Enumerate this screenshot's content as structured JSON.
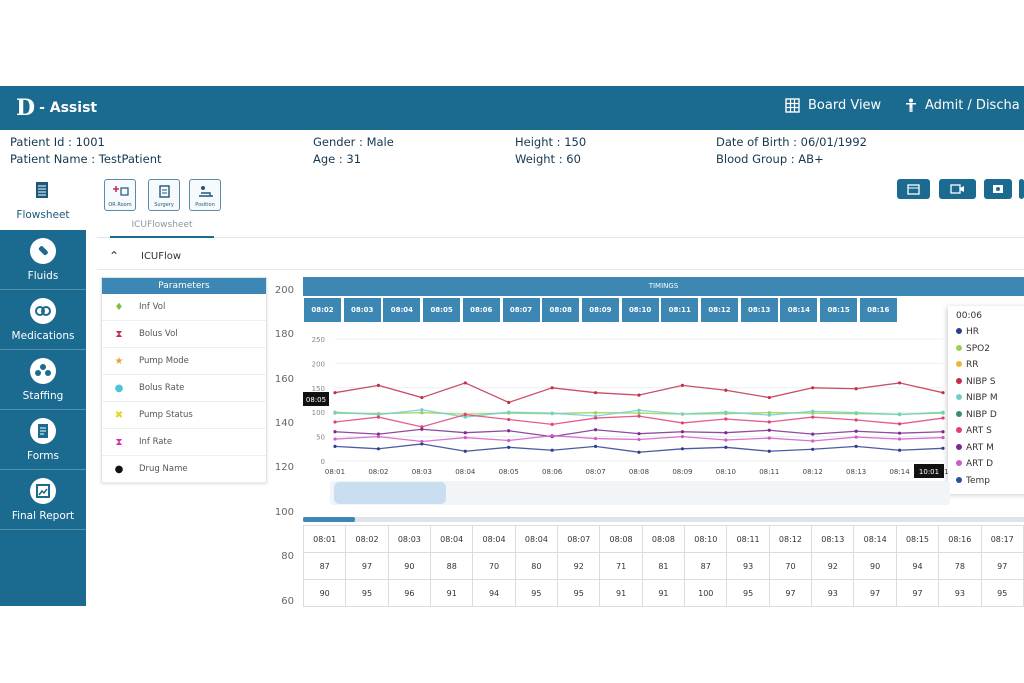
{
  "app": {
    "brand_mark": "D",
    "brand_name": "- Assist",
    "board_view_label": "Board View",
    "admit_label": "Admit / Discha"
  },
  "patient": {
    "id": "Patient Id : 1001",
    "name": "Patient Name : TestPatient",
    "gender": "Gender : Male",
    "age": "Age : 31",
    "height": "Height : 150",
    "weight": "Weight : 60",
    "dob": "Date of Birth : 06/01/1992",
    "blood_group": "Blood Group : AB+"
  },
  "sidebar": {
    "active": {
      "label": "Flowsheet",
      "icon": "flowsheet-icon"
    },
    "items": [
      {
        "label": "Fluids",
        "icon": "fluids-icon"
      },
      {
        "label": "Medications",
        "icon": "medications-icon"
      },
      {
        "label": "Staffing",
        "icon": "staffing-icon"
      },
      {
        "label": "Forms",
        "icon": "forms-icon"
      },
      {
        "label": "Final Report",
        "icon": "final-report-icon"
      }
    ]
  },
  "toolbar": {
    "buttons": [
      {
        "label": "OR Room",
        "icon": "or-room-icon"
      },
      {
        "label": "Surgery",
        "icon": "surgery-icon"
      },
      {
        "label": "Position",
        "icon": "position-icon"
      }
    ],
    "action_icons": [
      "calendar-icon",
      "video-icon",
      "media-icon",
      "more-icon"
    ]
  },
  "tab": {
    "label": "ICUFlowsheet"
  },
  "section": {
    "title": "ICUFlow"
  },
  "parameters": {
    "header": "Parameters",
    "rows": [
      {
        "label": "Inf Vol",
        "symbol": "♦",
        "color": "#7cc142"
      },
      {
        "label": "Bolus Vol",
        "symbol": "⧗",
        "color": "#c0304a"
      },
      {
        "label": "Pump Mode",
        "symbol": "★",
        "color": "#e6a23c"
      },
      {
        "label": "Bolus Rate",
        "symbol": "●",
        "color": "#4fc3d9"
      },
      {
        "label": "Pump Status",
        "symbol": "✖",
        "color": "#e6d61f"
      },
      {
        "label": "Inf Rate",
        "symbol": "⧗",
        "color": "#d62fa4"
      },
      {
        "label": "Drug Name",
        "symbol": "●",
        "color": "#111111"
      }
    ]
  },
  "y_axis": [
    "200",
    "180",
    "160",
    "140",
    "120",
    "100",
    "80",
    "60"
  ],
  "chart": {
    "header": "TIMINGS",
    "time_labels": [
      "08:02",
      "08:03",
      "08:04",
      "08:05",
      "08:06",
      "08:07",
      "08:08",
      "08:09",
      "08:10",
      "08:11",
      "08:12",
      "08:13",
      "08:14",
      "08:15",
      "08:16"
    ],
    "inner_y_ticks": [
      "250",
      "200",
      "150",
      "100",
      "50",
      "0"
    ],
    "x_ticks": [
      "08:01",
      "08:02",
      "08:03",
      "08:04",
      "08:05",
      "08:06",
      "08:07",
      "08:08",
      "08:09",
      "08:10",
      "08:11",
      "08:12",
      "08:13",
      "08:14",
      "08:15"
    ],
    "left_marker": "08:05",
    "right_marker": "10:01"
  },
  "legend": {
    "title": "00:06",
    "items": [
      {
        "label": "HR",
        "color": "#2b3f8f"
      },
      {
        "label": "SPO2",
        "color": "#9bcf5a"
      },
      {
        "label": "RR",
        "color": "#f0b23a"
      },
      {
        "label": "NIBP S",
        "color": "#c0304a"
      },
      {
        "label": "NIBP M",
        "color": "#6fd0c9"
      },
      {
        "label": "NIBP D",
        "color": "#3a8f6a"
      },
      {
        "label": "ART S",
        "color": "#e0407a"
      },
      {
        "label": "ART M",
        "color": "#7a2b8f"
      },
      {
        "label": "ART D",
        "color": "#d05ac8"
      },
      {
        "label": "Temp",
        "color": "#2b4f9f"
      }
    ]
  },
  "chart_data": {
    "type": "line",
    "x": [
      "08:01",
      "08:02",
      "08:03",
      "08:04",
      "08:05",
      "08:06",
      "08:07",
      "08:08",
      "08:09",
      "08:10",
      "08:11",
      "08:12",
      "08:13",
      "08:14",
      "08:15"
    ],
    "ylim": [
      0,
      250
    ],
    "series": [
      {
        "name": "HR",
        "values": [
          30,
          25,
          35,
          20,
          28,
          22,
          30,
          18,
          25,
          28,
          20,
          24,
          30,
          22,
          26
        ]
      },
      {
        "name": "SPO2",
        "values": [
          98,
          97,
          99,
          96,
          98,
          97,
          99,
          98,
          96,
          97,
          99,
          98,
          97,
          96,
          98
        ]
      },
      {
        "name": "NIBP S",
        "values": [
          140,
          155,
          130,
          160,
          120,
          150,
          140,
          135,
          155,
          145,
          130,
          150,
          148,
          160,
          140
        ]
      },
      {
        "name": "NIBP M",
        "values": [
          100,
          95,
          105,
          90,
          100,
          98,
          92,
          104,
          96,
          100,
          94,
          102,
          99,
          95,
          100
        ]
      },
      {
        "name": "ART S",
        "values": [
          80,
          90,
          70,
          95,
          85,
          75,
          88,
          92,
          78,
          86,
          80,
          90,
          84,
          76,
          88
        ]
      },
      {
        "name": "ART M",
        "values": [
          60,
          55,
          65,
          58,
          62,
          50,
          64,
          56,
          60,
          58,
          63,
          55,
          61,
          57,
          60
        ]
      },
      {
        "name": "ART D",
        "values": [
          45,
          50,
          40,
          48,
          42,
          52,
          46,
          44,
          50,
          43,
          47,
          41,
          49,
          45,
          48
        ]
      }
    ]
  },
  "grid": {
    "header": [
      "08:01",
      "08:02",
      "08:03",
      "08:04",
      "08:04",
      "08:04",
      "08:07",
      "08:08",
      "08:08",
      "08:10",
      "08:11",
      "08:12",
      "08:13",
      "08:14",
      "08:15",
      "08:16",
      "08:17"
    ],
    "rows": [
      [
        "87",
        "97",
        "90",
        "88",
        "70",
        "80",
        "92",
        "71",
        "81",
        "87",
        "93",
        "70",
        "92",
        "90",
        "94",
        "78",
        "97"
      ],
      [
        "90",
        "95",
        "96",
        "91",
        "94",
        "95",
        "95",
        "91",
        "91",
        "100",
        "95",
        "97",
        "93",
        "97",
        "97",
        "93",
        "95"
      ]
    ]
  }
}
